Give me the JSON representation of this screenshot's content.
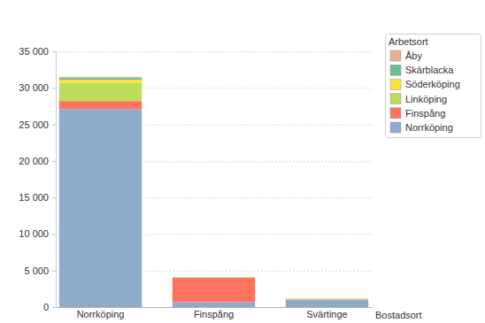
{
  "chart_data": {
    "type": "bar",
    "stacked": true,
    "grid": true,
    "legend": "top-right",
    "x_label": "Bostadsort",
    "legend_title": "Arbetsort",
    "categories": [
      "Norrköping",
      "Finspång",
      "Svärtinge"
    ],
    "series": [
      {
        "name": "Norrköping",
        "color": "#8eabcc",
        "values": [
          27100,
          700,
          1000
        ]
      },
      {
        "name": "Finspång",
        "color": "#ff7360",
        "values": [
          1100,
          3300,
          30
        ]
      },
      {
        "name": "Linköping",
        "color": "#bedd5a",
        "values": [
          2450,
          80,
          30
        ]
      },
      {
        "name": "Söderköping",
        "color": "#ffe040",
        "values": [
          450,
          20,
          100
        ]
      },
      {
        "name": "Skärblacka",
        "color": "#6abf94",
        "values": [
          250,
          10,
          20
        ]
      },
      {
        "name": "Åby",
        "color": "#e9b08f",
        "values": [
          150,
          10,
          20
        ]
      }
    ],
    "ylim": [
      0,
      35000
    ],
    "yticks": [
      0,
      {
        "value": 5000,
        "label": "5 000"
      },
      {
        "value": 10000,
        "label": "10 000"
      },
      {
        "value": 15000,
        "label": "15 000"
      },
      {
        "value": 20000,
        "label": "20 000"
      },
      {
        "value": 25000,
        "label": "25 000"
      },
      {
        "value": 30000,
        "label": "30 000"
      },
      {
        "value": 35000,
        "label": "35 000"
      }
    ]
  }
}
